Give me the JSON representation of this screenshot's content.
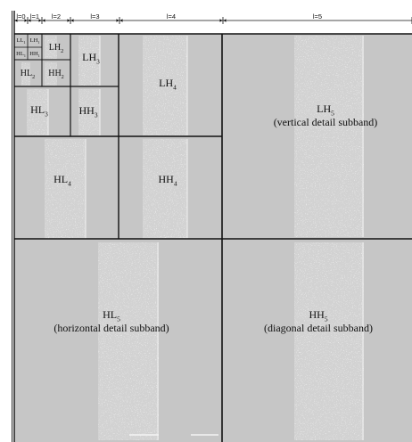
{
  "scale_labels": [
    "l=0",
    "l=1",
    "l=2",
    "l=3",
    "l=4",
    "l=5"
  ],
  "subbands": {
    "LL1": {
      "name": "LL",
      "sub": "1"
    },
    "LH1": {
      "name": "LH",
      "sub": "1"
    },
    "HL1": {
      "name": "HL",
      "sub": "1"
    },
    "HH1": {
      "name": "HH",
      "sub": "1"
    },
    "LH2": {
      "name": "LH",
      "sub": "2"
    },
    "HL2": {
      "name": "HL",
      "sub": "2"
    },
    "HH2": {
      "name": "HH",
      "sub": "2"
    },
    "LH3": {
      "name": "LH",
      "sub": "3"
    },
    "HL3": {
      "name": "HL",
      "sub": "3"
    },
    "HH3": {
      "name": "HH",
      "sub": "3"
    },
    "LH4": {
      "name": "LH",
      "sub": "4"
    },
    "HL4": {
      "name": "HL",
      "sub": "4"
    },
    "HH4": {
      "name": "HH",
      "sub": "4"
    },
    "LH5": {
      "name": "LH",
      "sub": "5",
      "caption": "(vertical detail subband)"
    },
    "HL5": {
      "name": "HL",
      "sub": "5",
      "caption": "(horizontal detail subband)"
    },
    "HH5": {
      "name": "HH",
      "sub": "5",
      "caption": "(diagonal detail subband)"
    }
  },
  "colors": {
    "background": "#c6c6c6",
    "line": "#111111",
    "speckle": "#eeeeee"
  }
}
